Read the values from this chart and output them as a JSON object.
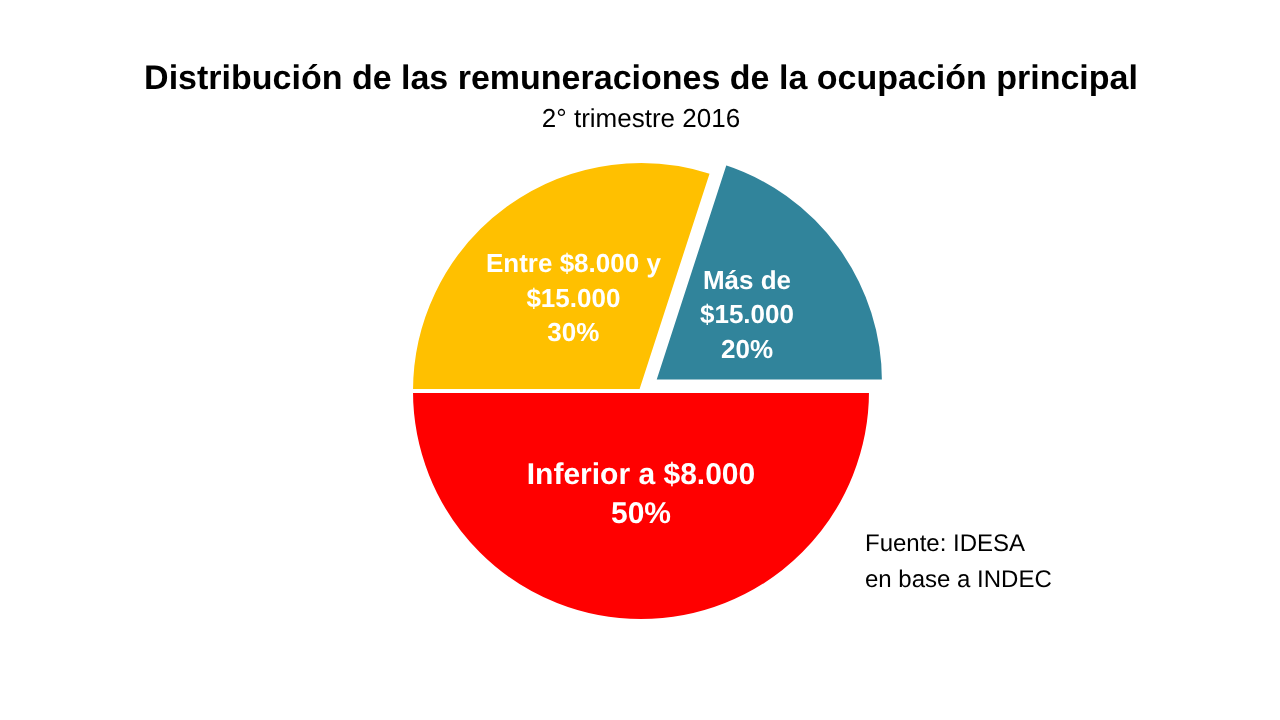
{
  "chart_data": {
    "type": "pie",
    "title": "Distribución de las remuneraciones de la ocupación principal",
    "subtitle": "2° trimestre 2016",
    "categories": [
      "Más de\n$15.000",
      "Entre $8.000 y\n$15.000",
      "Inferior a $8.000"
    ],
    "values": [
      20,
      30,
      50
    ],
    "value_labels": [
      "20%",
      "30%",
      "50%"
    ],
    "colors": [
      "#31849b",
      "#ffc000",
      "#ff0000"
    ],
    "annotations": [
      "Fuente: IDESA",
      "en base a INDEC"
    ]
  }
}
